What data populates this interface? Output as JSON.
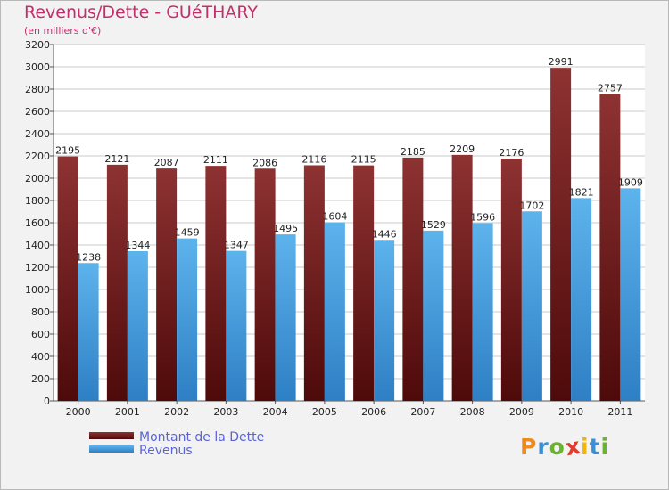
{
  "chart_data": {
    "type": "bar",
    "title": "Revenus/Dette - GUéTHARY",
    "subtitle": "(en milliers d'€)",
    "categories": [
      "2000",
      "2001",
      "2002",
      "2003",
      "2004",
      "2005",
      "2006",
      "2007",
      "2008",
      "2009",
      "2010",
      "2011"
    ],
    "series": [
      {
        "name": "Montant de la Dette",
        "color": "#7a1c1c",
        "values": [
          2195,
          2121,
          2087,
          2111,
          2086,
          2116,
          2115,
          2185,
          2209,
          2176,
          2991,
          2757
        ]
      },
      {
        "name": "Revenus",
        "color": "#4aa3e3",
        "values": [
          1238,
          1344,
          1459,
          1347,
          1495,
          1604,
          1446,
          1529,
          1596,
          1702,
          1821,
          1909
        ]
      }
    ],
    "ylim": [
      0,
      3200
    ],
    "yticks": [
      0,
      200,
      400,
      600,
      800,
      1000,
      1200,
      1400,
      1600,
      1800,
      2000,
      2200,
      2400,
      2600,
      2800,
      3000,
      3200
    ],
    "grid": true,
    "legend_position": "bottom-left"
  },
  "logo": {
    "letters": [
      "P",
      "r",
      "o",
      "x",
      "i",
      "t",
      "i"
    ],
    "colors": [
      "#f08a1c",
      "#3a8fd6",
      "#6ab42d",
      "#e23a2e",
      "#f2b705",
      "#3a8fd6",
      "#6ab42d"
    ]
  }
}
